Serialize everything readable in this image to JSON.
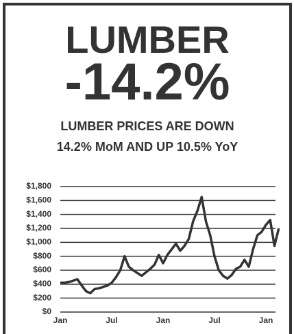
{
  "chart_data": {
    "type": "line",
    "title": "LUMBER",
    "annotations": [
      "-14.2%",
      "LUMBER PRICES ARE DOWN",
      "14.2% MoM AND UP 10.5% YoY"
    ],
    "categories": [
      "Jan",
      null,
      null,
      null,
      null,
      null,
      null,
      null,
      null,
      null,
      null,
      null,
      "Jul",
      null,
      null,
      null,
      null,
      null,
      null,
      null,
      null,
      null,
      null,
      null,
      "Jan",
      null,
      null,
      null,
      null,
      null,
      null,
      null,
      null,
      null,
      null,
      null,
      "Jul",
      null,
      null,
      null,
      null,
      null,
      null,
      null,
      null,
      null,
      null,
      null,
      "Jan",
      null,
      null,
      null
    ],
    "series": [
      {
        "name": "Lumber",
        "color": "#333333",
        "values": [
          420,
          420,
          430,
          450,
          470,
          380,
          300,
          270,
          330,
          340,
          360,
          380,
          420,
          500,
          600,
          800,
          650,
          600,
          560,
          520,
          570,
          620,
          680,
          820,
          700,
          820,
          900,
          980,
          880,
          950,
          1050,
          1300,
          1450,
          1650,
          1300,
          1100,
          800,
          600,
          520,
          480,
          530,
          620,
          650,
          750,
          650,
          900,
          1100,
          1150,
          1250,
          1320,
          950,
          1200
        ]
      }
    ],
    "ylim": [
      0,
      1800
    ],
    "yticks": [
      {
        "value": 0,
        "label": "$0"
      },
      {
        "value": 200,
        "label": "$200"
      },
      {
        "value": 400,
        "label": "$400"
      },
      {
        "value": 600,
        "label": "$600"
      },
      {
        "value": 800,
        "label": "$800"
      },
      {
        "value": 1000,
        "label": "$1,000"
      },
      {
        "value": 1200,
        "label": "$1,200"
      },
      {
        "value": 1400,
        "label": "$1,400"
      },
      {
        "value": 1600,
        "label": "$1,600"
      },
      {
        "value": 1800,
        "label": "$1,800"
      }
    ],
    "grid": true
  }
}
